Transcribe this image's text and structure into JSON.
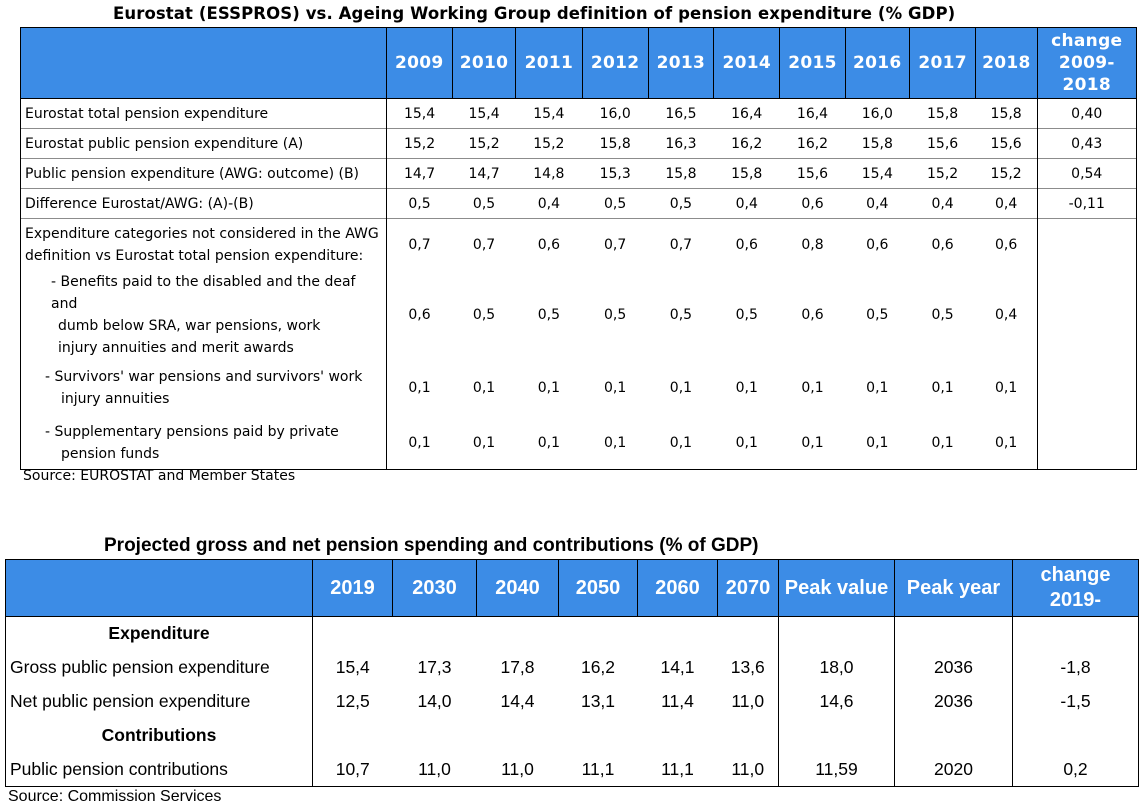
{
  "table1": {
    "title": "Eurostat (ESSPROS) vs. Ageing Working Group definition of pension expenditure (% GDP)",
    "years": [
      "2009",
      "2010",
      "2011",
      "2012",
      "2013",
      "2014",
      "2015",
      "2016",
      "2017",
      "2018"
    ],
    "change_header": [
      "change",
      "2009-",
      "2018"
    ],
    "rows": [
      {
        "label": "Eurostat total pension expenditure",
        "values": [
          "15,4",
          "15,4",
          "15,4",
          "16,0",
          "16,5",
          "16,4",
          "16,4",
          "16,0",
          "15,8",
          "15,8"
        ],
        "change": "0,40"
      },
      {
        "label": "Eurostat public pension expenditure (A)",
        "values": [
          "15,2",
          "15,2",
          "15,2",
          "15,8",
          "16,3",
          "16,2",
          "16,2",
          "15,8",
          "15,6",
          "15,6"
        ],
        "change": "0,43"
      },
      {
        "label": "Public pension expenditure (AWG: outcome) (B)",
        "values": [
          "14,7",
          "14,7",
          "14,8",
          "15,3",
          "15,8",
          "15,8",
          "15,6",
          "15,4",
          "15,2",
          "15,2"
        ],
        "change": "0,54"
      },
      {
        "label": "Difference Eurostat/AWG: (A)-(B)",
        "values": [
          "0,5",
          "0,5",
          "0,4",
          "0,5",
          "0,5",
          "0,4",
          "0,6",
          "0,4",
          "0,4",
          "0,4"
        ],
        "change": "-0,11"
      }
    ],
    "breakdown": [
      {
        "label_lines": [
          "Expenditure categories not considered in the AWG",
          "definition vs Eurostat total pension expenditure:"
        ],
        "values": [
          "0,7",
          "0,7",
          "0,6",
          "0,7",
          "0,7",
          "0,6",
          "0,8",
          "0,6",
          "0,6",
          "0,6"
        ]
      },
      {
        "label_lines": [
          "- Benefits paid to the disabled and the deaf and",
          "dumb below SRA, war pensions, work",
          "injury annuities and merit awards"
        ],
        "values": [
          "0,6",
          "0,5",
          "0,5",
          "0,5",
          "0,5",
          "0,5",
          "0,6",
          "0,5",
          "0,5",
          "0,4"
        ]
      },
      {
        "label_lines": [
          "- Survivors' war pensions and survivors' work",
          "injury annuities"
        ],
        "values": [
          "0,1",
          "0,1",
          "0,1",
          "0,1",
          "0,1",
          "0,1",
          "0,1",
          "0,1",
          "0,1",
          "0,1"
        ]
      },
      {
        "label_lines": [
          "- Supplementary pensions paid by private",
          "pension funds"
        ],
        "values": [
          "0,1",
          "0,1",
          "0,1",
          "0,1",
          "0,1",
          "0,1",
          "0,1",
          "0,1",
          "0,1",
          "0,1"
        ]
      }
    ],
    "source": "Source: EUROSTAT and Member States"
  },
  "table2": {
    "title": "Projected gross and net pension spending and contributions (% of GDP)",
    "years": [
      "2019",
      "2030",
      "2040",
      "2050",
      "2060",
      "2070"
    ],
    "peak_value_header": "Peak value",
    "peak_year_header": "Peak year",
    "change_header": [
      "change",
      "2019-"
    ],
    "sections": [
      {
        "heading": "Expenditure",
        "rows": [
          {
            "label": "Gross public pension expenditure",
            "values": [
              "15,4",
              "17,3",
              "17,8",
              "16,2",
              "14,1",
              "13,6"
            ],
            "peak_value": "18,0",
            "peak_year": "2036",
            "change": "-1,8"
          },
          {
            "label": "Net public pension expenditure",
            "values": [
              "12,5",
              "14,0",
              "14,4",
              "13,1",
              "11,4",
              "11,0"
            ],
            "peak_value": "14,6",
            "peak_year": "2036",
            "change": "-1,5"
          }
        ]
      },
      {
        "heading": "Contributions",
        "rows": [
          {
            "label": "Public pension contributions",
            "values": [
              "10,7",
              "11,0",
              "11,0",
              "11,1",
              "11,1",
              "11,0"
            ],
            "peak_value": "11,59",
            "peak_year": "2020",
            "change": "0,2"
          }
        ]
      }
    ],
    "source": "Source: Commission Services"
  },
  "colors": {
    "header_bg": "#3c8ce6",
    "header_text": "#ffffff"
  }
}
